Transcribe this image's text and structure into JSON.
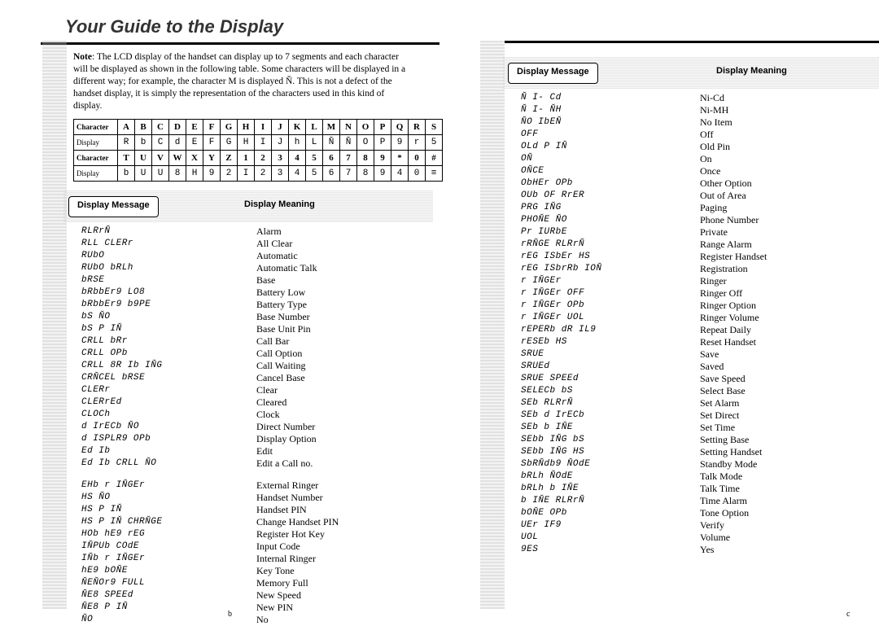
{
  "title": "Your Guide to the Display",
  "note_label": "Note",
  "note_text": ": The LCD display of the handset can display up to 7 segments and each character will be displayed as shown in the following table. Some characters will be displayed in a different way; for example, the character M is displayed Ň. This is not a defect of the handset display, it is simply the representation of the characters used in this kind of display.",
  "char_table": {
    "row_headers": [
      "Character",
      "Display",
      "Character",
      "Display"
    ],
    "rows": [
      [
        "A",
        "B",
        "C",
        "D",
        "E",
        "F",
        "G",
        "H",
        "I",
        "J",
        "K",
        "L",
        "M",
        "N",
        "O",
        "P",
        "Q",
        "R",
        "S"
      ],
      [
        "R",
        "b",
        "C",
        "d",
        "E",
        "F",
        "G",
        "H",
        "I",
        "J",
        "h",
        "L",
        "Ň",
        "Ň",
        "O",
        "P",
        "9",
        "r",
        "5"
      ],
      [
        "T",
        "U",
        "V",
        "W",
        "X",
        "Y",
        "Z",
        "1",
        "2",
        "3",
        "4",
        "5",
        "6",
        "7",
        "8",
        "9",
        "*",
        "0",
        "#"
      ],
      [
        "b",
        "U",
        "U",
        "8",
        "H",
        "9",
        "2",
        "I",
        "2",
        "3",
        "4",
        "5",
        "6",
        "7",
        "8",
        "9",
        "4",
        "0",
        "≡"
      ]
    ]
  },
  "hdr_msg": "Display Message",
  "hdr_meaning": "Display Meaning",
  "left_list": [
    [
      "RLRrŇ",
      "Alarm"
    ],
    [
      "RLL CLERr",
      "All Clear"
    ],
    [
      "RUbO",
      "Automatic"
    ],
    [
      "RUbO bRLh",
      "Automatic Talk"
    ],
    [
      "bRSE",
      "Base"
    ],
    [
      "bRbbEr9 LO8",
      "Battery Low"
    ],
    [
      "bRbbEr9 b9PE",
      "Battery Type"
    ],
    [
      "bS ŇO",
      "Base Number"
    ],
    [
      "bS P IŇ",
      "Base Unit Pin"
    ],
    [
      "CRLL bRr",
      "Call Bar"
    ],
    [
      "CRLL OPb",
      "Call Option"
    ],
    [
      "CRLL 8R Ib IŇG",
      "Call Waiting"
    ],
    [
      "CRŇCEL bRSE",
      "Cancel Base"
    ],
    [
      "CLERr",
      "Clear"
    ],
    [
      "CLERrEd",
      "Cleared"
    ],
    [
      "CLOCh",
      "Clock"
    ],
    [
      "d IrECb ŇO",
      "Direct Number"
    ],
    [
      "d ISPLR9 OPb",
      "Display Option"
    ],
    [
      "Ed Ib",
      "Edit"
    ],
    [
      "Ed Ib CRLL ŇO",
      "Edit a Call no."
    ],
    [
      "",
      ""
    ],
    [
      "EHb r IŇGEr",
      "External Ringer"
    ],
    [
      "HS ŇO",
      "Handset Number"
    ],
    [
      "HS P IŇ",
      "Handset PIN"
    ],
    [
      "HS P IŇ CHRŇGE",
      "Change Handset PIN"
    ],
    [
      "HOb hE9 rEG",
      "Register Hot Key"
    ],
    [
      "IŇPUb COdE",
      "Input Code"
    ],
    [
      "IŇb r IŇGEr",
      "Internal Ringer"
    ],
    [
      "hE9 bOŇE",
      "Key Tone"
    ],
    [
      "ŇEŇOr9 FULL",
      "Memory Full"
    ],
    [
      "ŇE8 SPEEd",
      "New Speed"
    ],
    [
      "ŇE8 P IŇ",
      "New PIN"
    ],
    [
      "ŇO",
      "No"
    ]
  ],
  "right_list": [
    [
      "Ň I- Cd",
      "Ni-Cd"
    ],
    [
      "Ň I- ŇH",
      "Ni-MH"
    ],
    [
      "ŇO IbEŇ",
      "No Item"
    ],
    [
      "OFF",
      "Off"
    ],
    [
      "OLd P IŇ",
      "Old Pin"
    ],
    [
      "OŇ",
      "On"
    ],
    [
      "OŇCE",
      "Once"
    ],
    [
      "ObHEr OPb",
      "Other Option"
    ],
    [
      "OUb OF RrER",
      "Out of Area"
    ],
    [
      "PRG IŇG",
      "Paging"
    ],
    [
      "PHOŇE ŇO",
      "Phone Number"
    ],
    [
      "Pr IURbE",
      "Private"
    ],
    [
      "rRŇGE RLRrŇ",
      "Range Alarm"
    ],
    [
      "rEG ISbEr HS",
      "Register Handset"
    ],
    [
      "rEG ISbrRb IOŇ",
      "Registration"
    ],
    [
      "r IŇGEr",
      "Ringer"
    ],
    [
      "r IŇGEr OFF",
      "Ringer Off"
    ],
    [
      "r IŇGEr OPb",
      "Ringer Option"
    ],
    [
      "r IŇGEr UOL",
      "Ringer Volume"
    ],
    [
      "rEPERb dR IL9",
      "Repeat Daily"
    ],
    [
      "rESEb HS",
      "Reset Handset"
    ],
    [
      "SRUE",
      "Save"
    ],
    [
      "SRUEd",
      "Saved"
    ],
    [
      "SRUE SPEEd",
      "Save Speed"
    ],
    [
      "SELECb bS",
      "Select Base"
    ],
    [
      "SEb RLRrŇ",
      "Set Alarm"
    ],
    [
      "SEb d IrECb",
      "Set Direct"
    ],
    [
      "SEb b IŇE",
      "Set Time"
    ],
    [
      "SEbb IŇG bS",
      "Setting Base"
    ],
    [
      "SEbb IŇG HS",
      "Setting Handset"
    ],
    [
      "SbRŇdb9 ŇOdE",
      "Standby Mode"
    ],
    [
      "bRLh ŇOdE",
      "Talk Mode"
    ],
    [
      "bRLh b IŇE",
      "Talk Time"
    ],
    [
      "b IŇE RLRrŇ",
      "Time Alarm"
    ],
    [
      "bOŇE OPb",
      "Tone Option"
    ],
    [
      "UEr IF9",
      "Verify"
    ],
    [
      "UOL",
      "Volume"
    ],
    [
      "9ES",
      "Yes"
    ]
  ],
  "page_b": "b",
  "page_c": "c"
}
